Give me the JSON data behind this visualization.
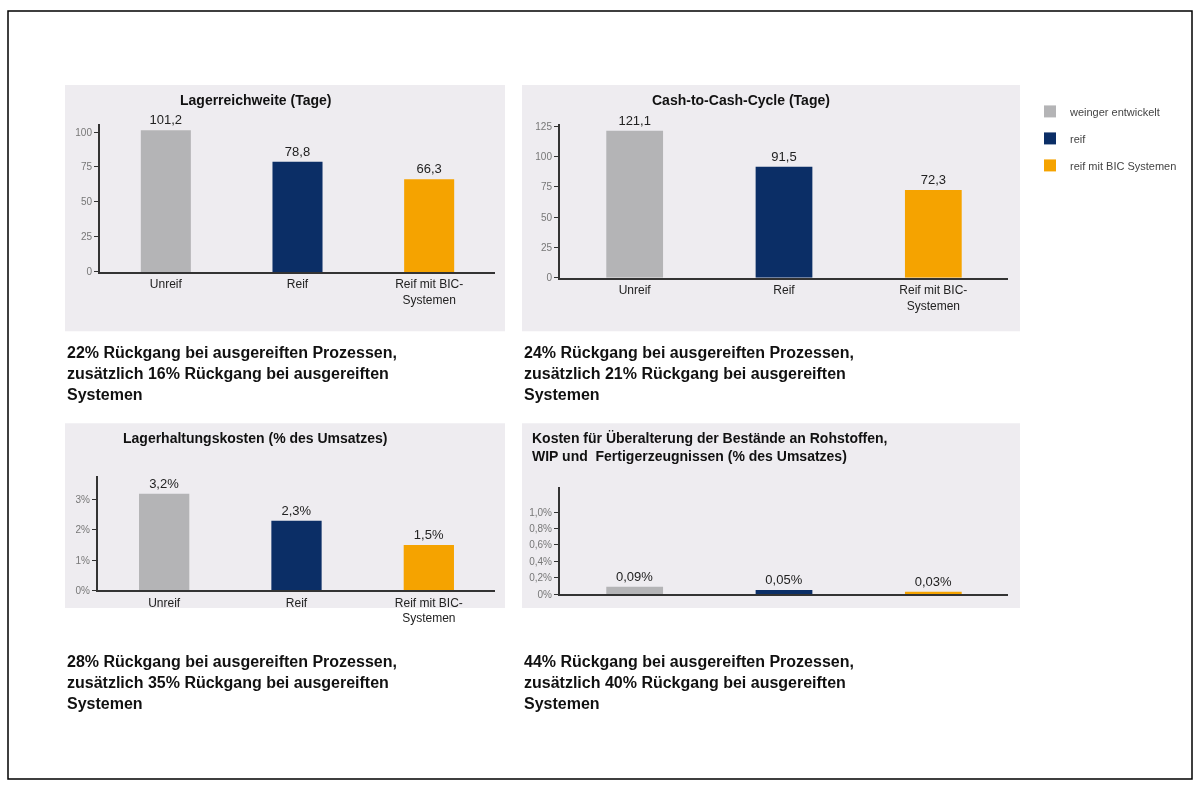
{
  "chart_data": [
    {
      "type": "bar",
      "title": "Lagerreichweite (Tage)",
      "categories": [
        "Unreif",
        "Reif",
        "Reif mit BIC-Systemen"
      ],
      "ylim": [
        0,
        106
      ],
      "yticks": [
        0,
        25,
        50,
        75,
        100
      ],
      "grid": false,
      "legend": "right",
      "series": [
        {
          "name": "weinger entwickelt",
          "color": "#b4b4b6",
          "values": [
            101.2,
            null,
            null
          ],
          "value_labels": [
            "101,2",
            null,
            null
          ]
        },
        {
          "name": "reif",
          "color": "#0b2e66",
          "values": [
            null,
            78.8,
            null
          ],
          "value_labels": [
            null,
            "78,8",
            null
          ]
        },
        {
          "name": "reif mit BIC Systemen",
          "color": "#f5a300",
          "values": [
            null,
            null,
            66.3
          ],
          "value_labels": [
            null,
            null,
            "66,3"
          ]
        }
      ],
      "annotations": [
        "22% Rückgang bei ausgereiften Prozessen, zusätzlich 16% Rückgang bei ausgereiften Systemen"
      ]
    },
    {
      "type": "bar",
      "title": "Cash-to-Cash-Cycle (Tage)",
      "categories": [
        "Unreif",
        "Reif",
        "Reif mit BIC-Systemen"
      ],
      "ylim": [
        0,
        127
      ],
      "yticks": [
        0,
        25,
        50,
        75,
        100,
        125
      ],
      "grid": false,
      "legend": "right",
      "series": [
        {
          "name": "weinger entwickelt",
          "color": "#b4b4b6",
          "values": [
            121.1,
            null,
            null
          ],
          "value_labels": [
            "121,1",
            null,
            null
          ]
        },
        {
          "name": "reif",
          "color": "#0b2e66",
          "values": [
            null,
            91.5,
            null
          ],
          "value_labels": [
            null,
            "91,5",
            null
          ]
        },
        {
          "name": "reif mit BIC Systemen",
          "color": "#f5a300",
          "values": [
            null,
            null,
            72.3
          ],
          "value_labels": [
            null,
            null,
            "72,3"
          ]
        }
      ],
      "annotations": [
        "24% Rückgang bei ausgereiften Prozessen, zusätzlich 21% Rückgang bei ausgereiften Systemen"
      ]
    },
    {
      "type": "bar",
      "title": "Lagerhaltungskosten (% des Umsatzes)",
      "categories": [
        "Unreif",
        "Reif",
        "Reif mit BIC-Systemen"
      ],
      "ylim": [
        0,
        3.8
      ],
      "yticks": [
        {
          "value": 0,
          "label": "0%"
        },
        {
          "value": 1,
          "label": "1%"
        },
        {
          "value": 2,
          "label": "2%"
        },
        {
          "value": 3,
          "label": "3%"
        }
      ],
      "grid": false,
      "legend": "right",
      "series": [
        {
          "name": "weinger entwickelt",
          "color": "#b4b4b6",
          "values": [
            3.2,
            null,
            null
          ],
          "value_labels": [
            "3,2%",
            null,
            null
          ]
        },
        {
          "name": "reif",
          "color": "#0b2e66",
          "values": [
            null,
            2.3,
            null
          ],
          "value_labels": [
            null,
            "2,3%",
            null
          ]
        },
        {
          "name": "reif mit BIC Systemen",
          "color": "#f5a300",
          "values": [
            null,
            null,
            1.5
          ],
          "value_labels": [
            null,
            null,
            "1,5%"
          ]
        }
      ],
      "annotations": [
        "28% Rückgang bei ausgereiften Prozessen, zusätzlich 35% Rückgang bei ausgereiften Systemen"
      ]
    },
    {
      "type": "bar",
      "title": "Kosten für Überalterung der Bestände an Rohstoffen, WIP und  Fertigerzeugnissen (% des Umsatzes)",
      "categories": [
        "Unreif",
        "Reif",
        "Reif mit BIC-Systemen"
      ],
      "ylim": [
        0,
        1.3
      ],
      "yticks": [
        {
          "value": 0,
          "label": "0%"
        },
        {
          "value": 0.2,
          "label": "0,2%"
        },
        {
          "value": 0.4,
          "label": "0,4%"
        },
        {
          "value": 0.6,
          "label": "0,6%"
        },
        {
          "value": 0.8,
          "label": "0,8%"
        },
        {
          "value": 1.0,
          "label": "1,0%"
        }
      ],
      "grid": false,
      "legend": "right",
      "tick_labels": "y",
      "series": [
        {
          "name": "weinger entwickelt",
          "color": "#b4b4b6",
          "values": [
            0.09,
            null,
            null
          ],
          "value_labels": [
            "0,09%",
            null,
            null
          ]
        },
        {
          "name": "reif",
          "color": "#0b2e66",
          "values": [
            null,
            0.05,
            null
          ],
          "value_labels": [
            null,
            "0,05%",
            null
          ]
        },
        {
          "name": "reif mit BIC Systemen",
          "color": "#f5a300",
          "values": [
            null,
            null,
            0.03
          ],
          "value_labels": [
            null,
            null,
            "0,03%"
          ]
        }
      ],
      "annotations": [
        "44% Rückgang bei ausgereiften Prozessen, zusätzlich 40% Rückgang bei ausgereiften Systemen"
      ]
    }
  ]
}
